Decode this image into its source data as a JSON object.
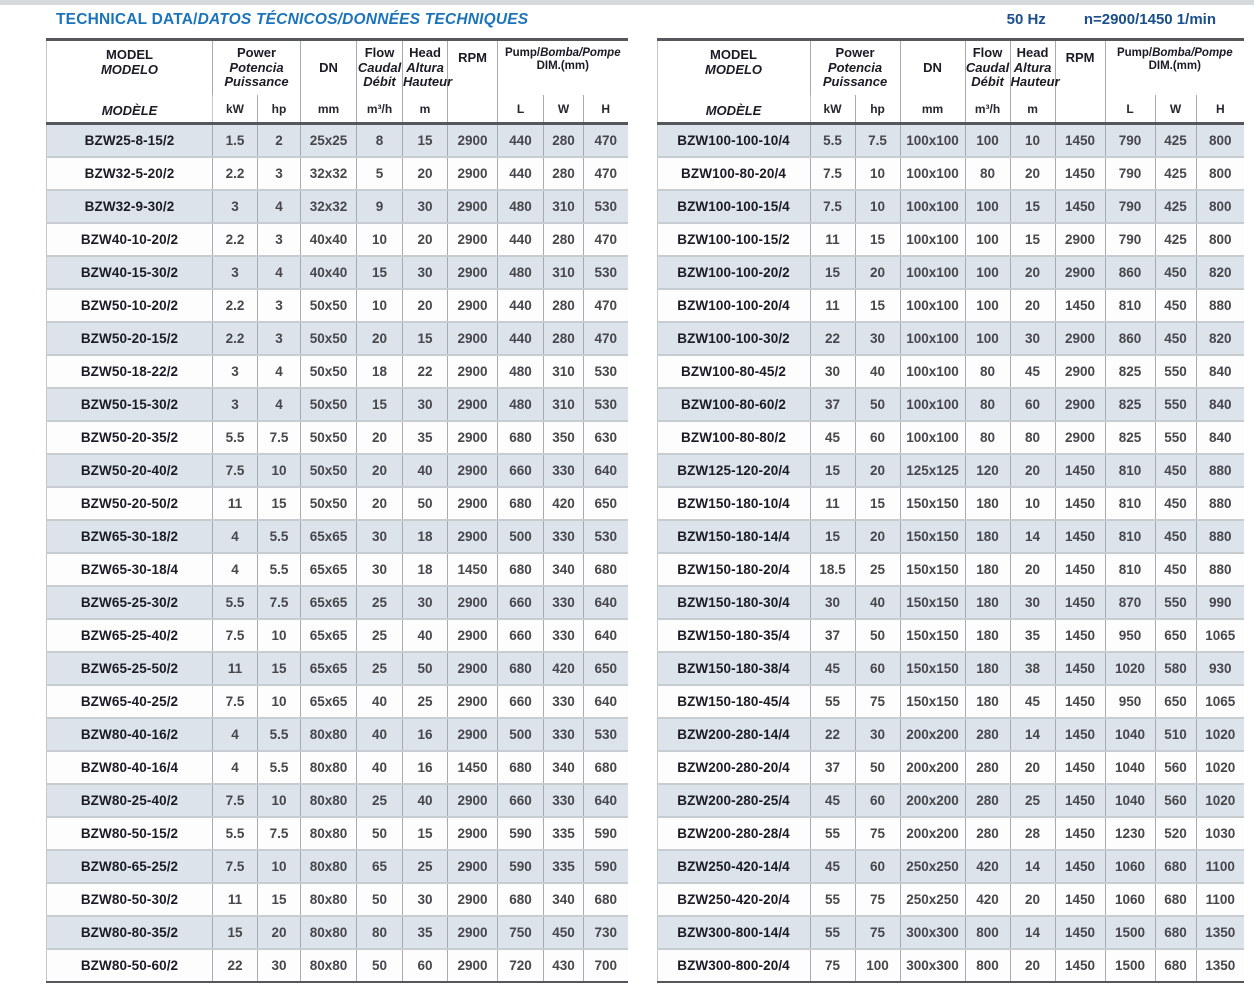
{
  "title": {
    "main": "TECHNICAL DATA/",
    "italic": "DATOS TÉCNICOS/DONNÉES TECHNIQUES"
  },
  "frequency": {
    "hz": "50 Hz",
    "speed": "n=2900/1450 1/min"
  },
  "colors": {
    "title_blue": "#1b74bb",
    "freq_navy": "#1a4e8c",
    "row_band": "#dce3ea",
    "rule_dark": "#54575b"
  },
  "header": {
    "model": [
      "MODEL",
      "MODELO",
      "MODÈLE"
    ],
    "power": [
      "Power",
      "Potencia",
      "Puissance"
    ],
    "dn": "DN",
    "flow": [
      "Flow",
      "Caudal",
      "Débit"
    ],
    "head": [
      "Head",
      "Altura",
      "Hauteur"
    ],
    "rpm": "RPM",
    "dim_line1_roman": "Pump/",
    "dim_line1_italic": "Bomba/Pompe",
    "dim_line2": "DIM.(mm)",
    "units": {
      "kw": "kW",
      "hp": "hp",
      "dn": "mm",
      "flow": "m³/h",
      "head": "m",
      "l": "L",
      "w": "W",
      "h": "H"
    }
  },
  "tables": [
    {
      "side": "left",
      "rows": [
        [
          "BZW25-8-15/2",
          "1.5",
          "2",
          "25x25",
          "8",
          "15",
          "2900",
          "440",
          "280",
          "470"
        ],
        [
          "BZW32-5-20/2",
          "2.2",
          "3",
          "32x32",
          "5",
          "20",
          "2900",
          "440",
          "280",
          "470"
        ],
        [
          "BZW32-9-30/2",
          "3",
          "4",
          "32x32",
          "9",
          "30",
          "2900",
          "480",
          "310",
          "530"
        ],
        [
          "BZW40-10-20/2",
          "2.2",
          "3",
          "40x40",
          "10",
          "20",
          "2900",
          "440",
          "280",
          "470"
        ],
        [
          "BZW40-15-30/2",
          "3",
          "4",
          "40x40",
          "15",
          "30",
          "2900",
          "480",
          "310",
          "530"
        ],
        [
          "BZW50-10-20/2",
          "2.2",
          "3",
          "50x50",
          "10",
          "20",
          "2900",
          "440",
          "280",
          "470"
        ],
        [
          "BZW50-20-15/2",
          "2.2",
          "3",
          "50x50",
          "20",
          "15",
          "2900",
          "440",
          "280",
          "470"
        ],
        [
          "BZW50-18-22/2",
          "3",
          "4",
          "50x50",
          "18",
          "22",
          "2900",
          "480",
          "310",
          "530"
        ],
        [
          "BZW50-15-30/2",
          "3",
          "4",
          "50x50",
          "15",
          "30",
          "2900",
          "480",
          "310",
          "530"
        ],
        [
          "BZW50-20-35/2",
          "5.5",
          "7.5",
          "50x50",
          "20",
          "35",
          "2900",
          "680",
          "350",
          "630"
        ],
        [
          "BZW50-20-40/2",
          "7.5",
          "10",
          "50x50",
          "20",
          "40",
          "2900",
          "660",
          "330",
          "640"
        ],
        [
          "BZW50-20-50/2",
          "11",
          "15",
          "50x50",
          "20",
          "50",
          "2900",
          "680",
          "420",
          "650"
        ],
        [
          "BZW65-30-18/2",
          "4",
          "5.5",
          "65x65",
          "30",
          "18",
          "2900",
          "500",
          "330",
          "530"
        ],
        [
          "BZW65-30-18/4",
          "4",
          "5.5",
          "65x65",
          "30",
          "18",
          "1450",
          "680",
          "340",
          "680"
        ],
        [
          "BZW65-25-30/2",
          "5.5",
          "7.5",
          "65x65",
          "25",
          "30",
          "2900",
          "660",
          "330",
          "640"
        ],
        [
          "BZW65-25-40/2",
          "7.5",
          "10",
          "65x65",
          "25",
          "40",
          "2900",
          "660",
          "330",
          "640"
        ],
        [
          "BZW65-25-50/2",
          "11",
          "15",
          "65x65",
          "25",
          "50",
          "2900",
          "680",
          "420",
          "650"
        ],
        [
          "BZW65-40-25/2",
          "7.5",
          "10",
          "65x65",
          "40",
          "25",
          "2900",
          "660",
          "330",
          "640"
        ],
        [
          "BZW80-40-16/2",
          "4",
          "5.5",
          "80x80",
          "40",
          "16",
          "2900",
          "500",
          "330",
          "530"
        ],
        [
          "BZW80-40-16/4",
          "4",
          "5.5",
          "80x80",
          "40",
          "16",
          "1450",
          "680",
          "340",
          "680"
        ],
        [
          "BZW80-25-40/2",
          "7.5",
          "10",
          "80x80",
          "25",
          "40",
          "2900",
          "660",
          "330",
          "640"
        ],
        [
          "BZW80-50-15/2",
          "5.5",
          "7.5",
          "80x80",
          "50",
          "15",
          "2900",
          "590",
          "335",
          "590"
        ],
        [
          "BZW80-65-25/2",
          "7.5",
          "10",
          "80x80",
          "65",
          "25",
          "2900",
          "590",
          "335",
          "590"
        ],
        [
          "BZW80-50-30/2",
          "11",
          "15",
          "80x80",
          "50",
          "30",
          "2900",
          "680",
          "340",
          "680"
        ],
        [
          "BZW80-80-35/2",
          "15",
          "20",
          "80x80",
          "80",
          "35",
          "2900",
          "750",
          "450",
          "730"
        ],
        [
          "BZW80-50-60/2",
          "22",
          "30",
          "80x80",
          "50",
          "60",
          "2900",
          "720",
          "430",
          "700"
        ]
      ]
    },
    {
      "side": "right",
      "rows": [
        [
          "BZW100-100-10/4",
          "5.5",
          "7.5",
          "100x100",
          "100",
          "10",
          "1450",
          "790",
          "425",
          "800"
        ],
        [
          "BZW100-80-20/4",
          "7.5",
          "10",
          "100x100",
          "80",
          "20",
          "1450",
          "790",
          "425",
          "800"
        ],
        [
          "BZW100-100-15/4",
          "7.5",
          "10",
          "100x100",
          "100",
          "15",
          "1450",
          "790",
          "425",
          "800"
        ],
        [
          "BZW100-100-15/2",
          "11",
          "15",
          "100x100",
          "100",
          "15",
          "2900",
          "790",
          "425",
          "800"
        ],
        [
          "BZW100-100-20/2",
          "15",
          "20",
          "100x100",
          "100",
          "20",
          "2900",
          "860",
          "450",
          "820"
        ],
        [
          "BZW100-100-20/4",
          "11",
          "15",
          "100x100",
          "100",
          "20",
          "1450",
          "810",
          "450",
          "880"
        ],
        [
          "BZW100-100-30/2",
          "22",
          "30",
          "100x100",
          "100",
          "30",
          "2900",
          "860",
          "450",
          "820"
        ],
        [
          "BZW100-80-45/2",
          "30",
          "40",
          "100x100",
          "80",
          "45",
          "2900",
          "825",
          "550",
          "840"
        ],
        [
          "BZW100-80-60/2",
          "37",
          "50",
          "100x100",
          "80",
          "60",
          "2900",
          "825",
          "550",
          "840"
        ],
        [
          "BZW100-80-80/2",
          "45",
          "60",
          "100x100",
          "80",
          "80",
          "2900",
          "825",
          "550",
          "840"
        ],
        [
          "BZW125-120-20/4",
          "15",
          "20",
          "125x125",
          "120",
          "20",
          "1450",
          "810",
          "450",
          "880"
        ],
        [
          "BZW150-180-10/4",
          "11",
          "15",
          "150x150",
          "180",
          "10",
          "1450",
          "810",
          "450",
          "880"
        ],
        [
          "BZW150-180-14/4",
          "15",
          "20",
          "150x150",
          "180",
          "14",
          "1450",
          "810",
          "450",
          "880"
        ],
        [
          "BZW150-180-20/4",
          "18.5",
          "25",
          "150x150",
          "180",
          "20",
          "1450",
          "810",
          "450",
          "880"
        ],
        [
          "BZW150-180-30/4",
          "30",
          "40",
          "150x150",
          "180",
          "30",
          "1450",
          "870",
          "550",
          "990"
        ],
        [
          "BZW150-180-35/4",
          "37",
          "50",
          "150x150",
          "180",
          "35",
          "1450",
          "950",
          "650",
          "1065"
        ],
        [
          "BZW150-180-38/4",
          "45",
          "60",
          "150x150",
          "180",
          "38",
          "1450",
          "1020",
          "580",
          "930"
        ],
        [
          "BZW150-180-45/4",
          "55",
          "75",
          "150x150",
          "180",
          "45",
          "1450",
          "950",
          "650",
          "1065"
        ],
        [
          "BZW200-280-14/4",
          "22",
          "30",
          "200x200",
          "280",
          "14",
          "1450",
          "1040",
          "510",
          "1020"
        ],
        [
          "BZW200-280-20/4",
          "37",
          "50",
          "200x200",
          "280",
          "20",
          "1450",
          "1040",
          "560",
          "1020"
        ],
        [
          "BZW200-280-25/4",
          "45",
          "60",
          "200x200",
          "280",
          "25",
          "1450",
          "1040",
          "560",
          "1020"
        ],
        [
          "BZW200-280-28/4",
          "55",
          "75",
          "200x200",
          "280",
          "28",
          "1450",
          "1230",
          "520",
          "1030"
        ],
        [
          "BZW250-420-14/4",
          "45",
          "60",
          "250x250",
          "420",
          "14",
          "1450",
          "1060",
          "680",
          "1100"
        ],
        [
          "BZW250-420-20/4",
          "55",
          "75",
          "250x250",
          "420",
          "20",
          "1450",
          "1060",
          "680",
          "1100"
        ],
        [
          "BZW300-800-14/4",
          "55",
          "75",
          "300x300",
          "800",
          "14",
          "1450",
          "1500",
          "680",
          "1350"
        ],
        [
          "BZW300-800-20/4",
          "75",
          "100",
          "300x300",
          "800",
          "20",
          "1450",
          "1500",
          "680",
          "1350"
        ]
      ]
    }
  ]
}
